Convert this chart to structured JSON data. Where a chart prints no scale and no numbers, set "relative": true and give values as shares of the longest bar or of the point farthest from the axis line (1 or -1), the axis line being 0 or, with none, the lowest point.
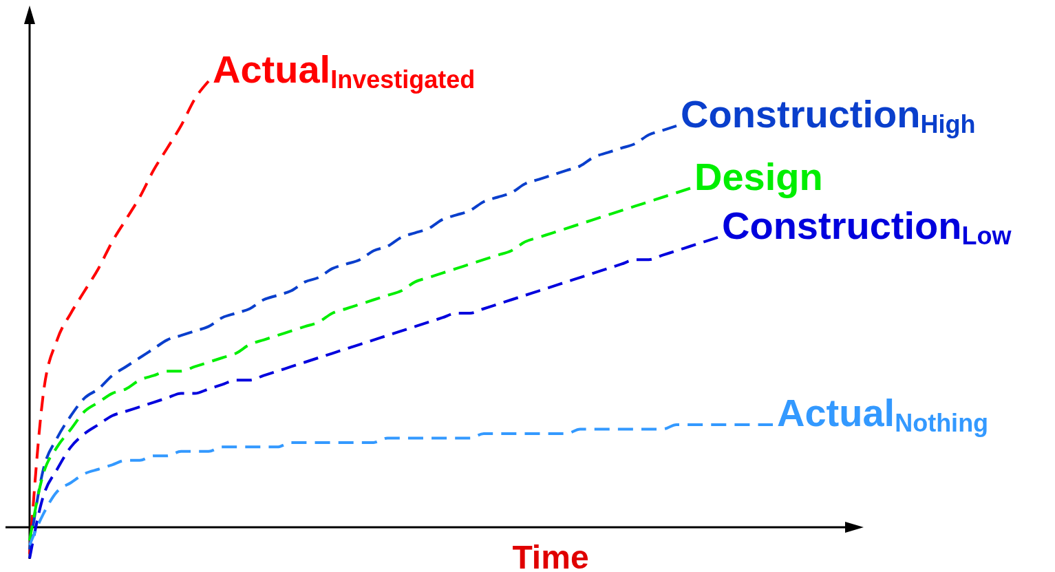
{
  "chart_data": {
    "type": "line",
    "relative": true,
    "xlabel": "Time",
    "legend": false,
    "line_style": "dashed",
    "categories": [
      null,
      null,
      null,
      null,
      null,
      null,
      null,
      null,
      null,
      null,
      null,
      null,
      null,
      null,
      null,
      null,
      null,
      null,
      null,
      null,
      null,
      null,
      null,
      null,
      null,
      null,
      null,
      null,
      null,
      null,
      null,
      null,
      null,
      null,
      null,
      null,
      null,
      null,
      null,
      null,
      null,
      null,
      null,
      null,
      null,
      null,
      null,
      null,
      null,
      null,
      null,
      null,
      null,
      null,
      null
    ],
    "series": [
      {
        "name": "Actual$_{Investigated}$",
        "color": "#ff0000",
        "values": [
          -0.06,
          0.3,
          0.42,
          0.48,
          0.53,
          0.58,
          0.64,
          0.69,
          0.74,
          0.8,
          0.85,
          0.9,
          0.96,
          1,
          null,
          null,
          null,
          null,
          null,
          null,
          null,
          null,
          null,
          null,
          null,
          null,
          null,
          null,
          null,
          null,
          null,
          null,
          null,
          null,
          null,
          null,
          null,
          null,
          null,
          null,
          null,
          null,
          null,
          null,
          null,
          null,
          null,
          null,
          null,
          null,
          null,
          null,
          null,
          null,
          null
        ]
      },
      {
        "name": "Construction$_{High}$",
        "color": "#0a3fcc",
        "values": [
          -0.05,
          0.13,
          0.2,
          0.25,
          0.29,
          0.31,
          0.34,
          0.36,
          0.38,
          0.4,
          0.42,
          0.43,
          0.44,
          0.45,
          0.47,
          0.48,
          0.49,
          0.51,
          0.52,
          0.53,
          0.55,
          0.56,
          0.58,
          0.59,
          0.6,
          0.62,
          0.63,
          0.65,
          0.66,
          0.67,
          0.69,
          0.7,
          0.71,
          0.73,
          0.74,
          0.75,
          0.77,
          0.78,
          0.79,
          0.8,
          0.81,
          0.83,
          0.84,
          0.85,
          0.86,
          0.88,
          0.89,
          0.9,
          null,
          null,
          null,
          null,
          null,
          null,
          null
        ]
      },
      {
        "name": "Design",
        "color": "#00ee00",
        "values": [
          -0.03,
          0.12,
          0.18,
          0.22,
          0.26,
          0.28,
          0.3,
          0.31,
          0.33,
          0.34,
          0.35,
          0.35,
          0.36,
          0.37,
          0.38,
          0.39,
          0.41,
          0.42,
          0.43,
          0.44,
          0.45,
          0.46,
          0.48,
          0.49,
          0.5,
          0.51,
          0.52,
          0.53,
          0.55,
          0.56,
          0.57,
          0.58,
          0.59,
          0.6,
          0.61,
          0.62,
          0.64,
          0.65,
          0.66,
          0.67,
          0.68,
          0.69,
          0.7,
          0.71,
          0.72,
          0.73,
          0.74,
          0.75,
          0.76,
          null,
          null,
          null,
          null,
          null,
          null
        ]
      },
      {
        "name": "Construction$_{Low}$",
        "color": "#0000dd",
        "values": [
          -0.07,
          0.07,
          0.13,
          0.18,
          0.21,
          0.23,
          0.25,
          0.26,
          0.27,
          0.28,
          0.29,
          0.3,
          0.3,
          0.31,
          0.32,
          0.33,
          0.33,
          0.34,
          0.35,
          0.36,
          0.37,
          0.38,
          0.39,
          0.4,
          0.41,
          0.42,
          0.43,
          0.44,
          0.45,
          0.46,
          0.47,
          0.48,
          0.48,
          0.49,
          0.5,
          0.51,
          0.52,
          0.53,
          0.54,
          0.55,
          0.56,
          0.57,
          0.58,
          0.59,
          0.6,
          0.6,
          0.61,
          0.62,
          0.63,
          0.64,
          0.65,
          null,
          null,
          null,
          null
        ]
      },
      {
        "name": "Actual$_{Nothing}$",
        "color": "#3399ff",
        "values": [
          -0.04,
          0.03,
          0.08,
          0.1,
          0.12,
          0.13,
          0.14,
          0.15,
          0.15,
          0.16,
          0.16,
          0.17,
          0.17,
          0.17,
          0.18,
          0.18,
          0.18,
          0.18,
          0.18,
          0.19,
          0.19,
          0.19,
          0.19,
          0.19,
          0.19,
          0.19,
          0.2,
          0.2,
          0.2,
          0.2,
          0.2,
          0.2,
          0.2,
          0.21,
          0.21,
          0.21,
          0.21,
          0.21,
          0.21,
          0.21,
          0.22,
          0.22,
          0.22,
          0.22,
          0.22,
          0.22,
          0.22,
          0.23,
          0.23,
          0.23,
          0.23,
          0.23,
          0.23,
          0.23,
          0.23
        ]
      }
    ]
  }
}
